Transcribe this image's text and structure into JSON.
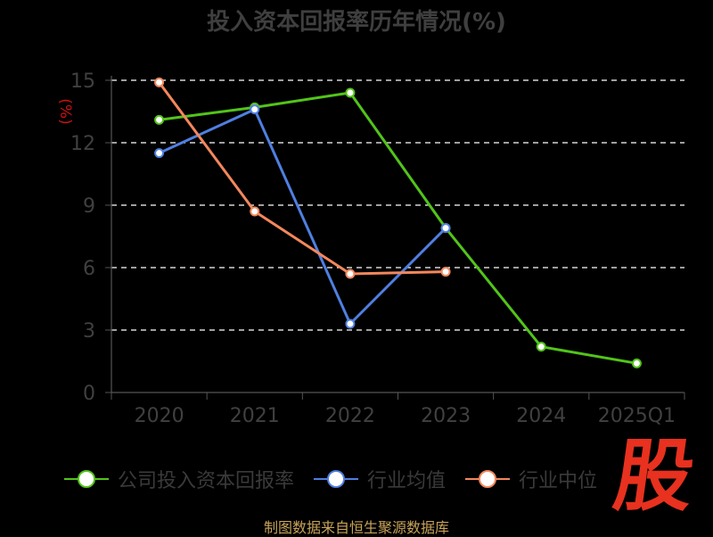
{
  "chart_data": {
    "type": "line",
    "title": "投入资本回报率历年情况(%)",
    "ylabel": "(%)",
    "xlabel": "",
    "categories": [
      "2020",
      "2021",
      "2022",
      "2023",
      "2024",
      "2025Q1"
    ],
    "ylim": [
      0,
      15
    ],
    "yticks": [
      "0",
      "3",
      "6",
      "9",
      "12",
      "15"
    ],
    "grid": true,
    "legend_position": "bottom",
    "series": [
      {
        "name": "公司投入资本回报率",
        "color": "#52c41a",
        "values": [
          13.1,
          13.7,
          14.4,
          7.9,
          2.2,
          1.4
        ]
      },
      {
        "name": "行业均值",
        "color": "#4f7fe0",
        "values": [
          11.5,
          13.6,
          3.3,
          7.9,
          null,
          null
        ]
      },
      {
        "name": "行业中位",
        "color": "#f4875c",
        "values": [
          14.9,
          8.7,
          5.7,
          5.8,
          null,
          null
        ]
      }
    ]
  },
  "footer": {
    "source": "制图数据来自恒生聚源数据库"
  },
  "brand": {
    "logo_text": "股"
  }
}
